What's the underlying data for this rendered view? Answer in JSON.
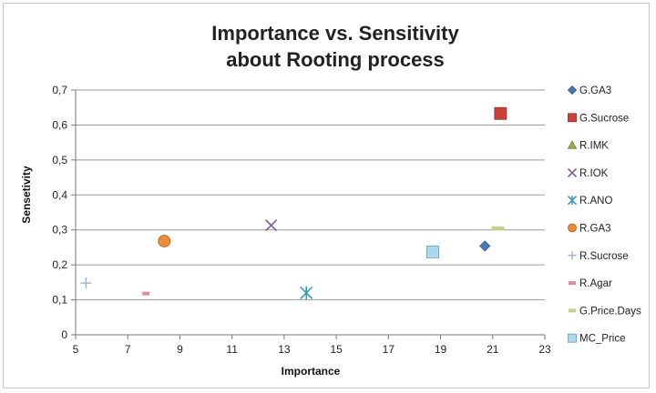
{
  "chart_data": {
    "type": "scatter",
    "title_lines": [
      "Importance vs. Sensitivity",
      "about Rooting process"
    ],
    "xlabel": "Importance",
    "ylabel": "Sensetivity",
    "xlim": [
      5,
      23
    ],
    "ylim": [
      0,
      0.7
    ],
    "x_ticks": [
      "5",
      "7",
      "9",
      "11",
      "13",
      "15",
      "17",
      "19",
      "21",
      "23"
    ],
    "y_ticks": [
      "0",
      "0,1",
      "0,2",
      "0,3",
      "0,4",
      "0,5",
      "0,6",
      "0,7"
    ],
    "grid": "horizontal",
    "legend_position": "right",
    "series": [
      {
        "name": "G.GA3",
        "marker": "diamond",
        "color": "#4a77b8",
        "x": 20.7,
        "y": 0.254
      },
      {
        "name": "G.Sucrose",
        "marker": "square",
        "color": "#cc3f3b",
        "x": 21.3,
        "y": 0.633
      },
      {
        "name": "R.IMK",
        "marker": "triangle",
        "color": "#8fb24a",
        "x": null,
        "y": null
      },
      {
        "name": "R.IOK",
        "marker": "x",
        "color": "#7d5a9e",
        "x": 12.5,
        "y": 0.313
      },
      {
        "name": "R.ANO",
        "marker": "star",
        "color": "#3d9ab5",
        "x": 13.85,
        "y": 0.12
      },
      {
        "name": "R.GA3",
        "marker": "circle",
        "color": "#ee8c35",
        "x": 8.4,
        "y": 0.268
      },
      {
        "name": "R.Sucrose",
        "marker": "plus",
        "color": "#98b3d8",
        "x": 5.4,
        "y": 0.148
      },
      {
        "name": "R.Agar",
        "marker": "dash",
        "color": "#de9090",
        "x": 7.7,
        "y": 0.118
      },
      {
        "name": "G.Price.Days",
        "marker": "dash",
        "color": "#c2d28a",
        "x": 21.2,
        "y": 0.305
      },
      {
        "name": "MC_Price",
        "marker": "square",
        "color": "#a9d9ef",
        "x": 18.7,
        "y": 0.237
      }
    ]
  }
}
